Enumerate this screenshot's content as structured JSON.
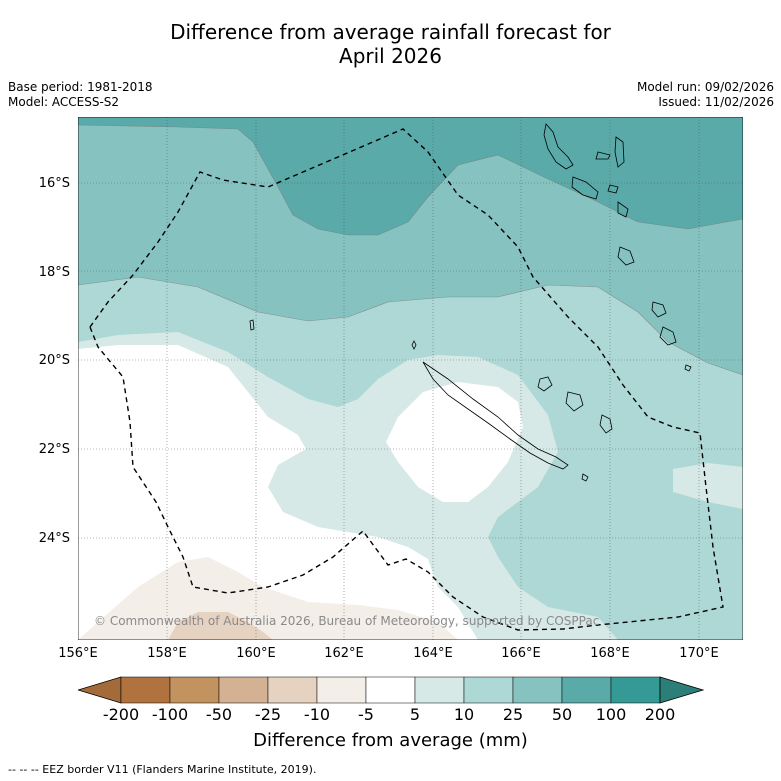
{
  "title": {
    "line1": "Difference from average rainfall forecast for",
    "line2": "April 2026"
  },
  "meta": {
    "base_period": "Base period: 1981-2018",
    "model": "Model: ACCESS-S2",
    "model_run": "Model run: 09/02/2026",
    "issued": "Issued: 11/02/2026"
  },
  "axes": {
    "lat_labels": [
      "16°S",
      "18°S",
      "20°S",
      "22°S",
      "24°S"
    ],
    "lon_labels": [
      "156°E",
      "158°E",
      "160°E",
      "162°E",
      "164°E",
      "166°E",
      "168°E",
      "170°E"
    ]
  },
  "colorbar": {
    "labels": [
      "-200",
      "-100",
      "-50",
      "-25",
      "-10",
      "-5",
      "5",
      "10",
      "25",
      "50",
      "100",
      "200"
    ],
    "colors": [
      "#a26b39",
      "#b0733f",
      "#c2925f",
      "#d4b192",
      "#e6d2c0",
      "#f3eee8",
      "#ffffff",
      "#d6e9e7",
      "#aed8d5",
      "#86c3c0",
      "#5aaaa9",
      "#359a96",
      "#2c7e79"
    ],
    "title": "Difference from average (mm)"
  },
  "copyright": "© Commonwealth of Australia 2026, Bureau of Meteorology, supported by COSPPac",
  "footer": "--  --  -- EEZ border V11 (Flanders Marine Institute, 2019)."
}
